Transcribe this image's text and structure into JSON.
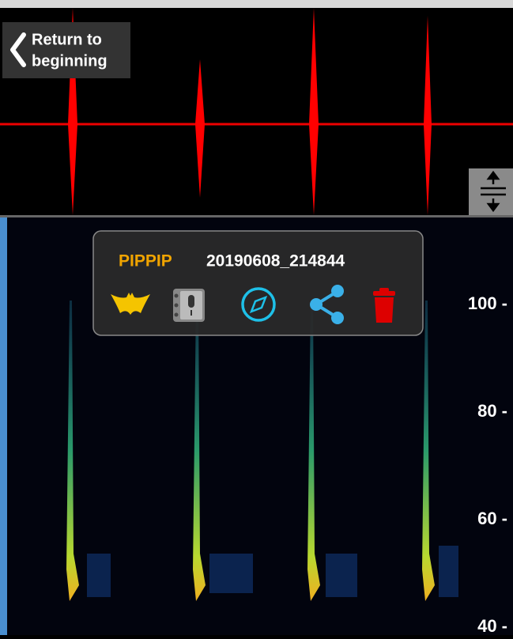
{
  "back_button": {
    "line1": "Return to",
    "line2": "beginning"
  },
  "popup": {
    "species": "PIPPIP",
    "filename": "20190608_214844"
  },
  "freq_axis": [
    "100 -",
    "80 -",
    "60 -",
    "40 -"
  ]
}
